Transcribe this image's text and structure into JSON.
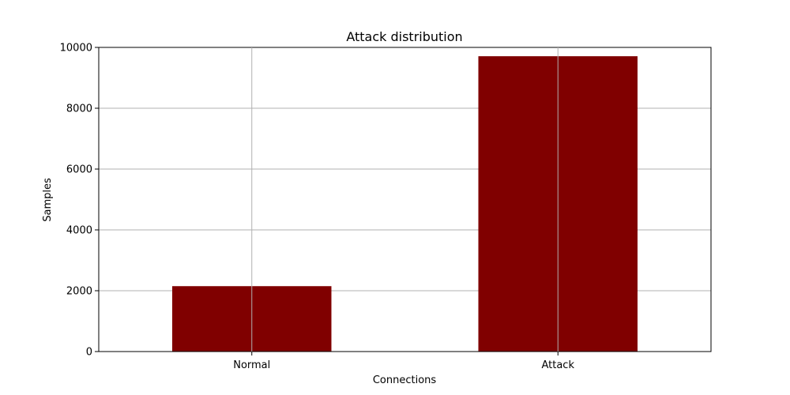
{
  "chart_data": {
    "type": "bar",
    "title": "Attack distribution",
    "xlabel": "Connections",
    "ylabel": "Samples",
    "categories": [
      "Normal",
      "Attack"
    ],
    "values": [
      2150,
      9710
    ],
    "ylim": [
      0,
      10000
    ],
    "yticks": [
      0,
      2000,
      4000,
      6000,
      8000,
      10000
    ],
    "grid": true,
    "bar_color": "#800000",
    "grid_color": "#b0b0b0"
  }
}
